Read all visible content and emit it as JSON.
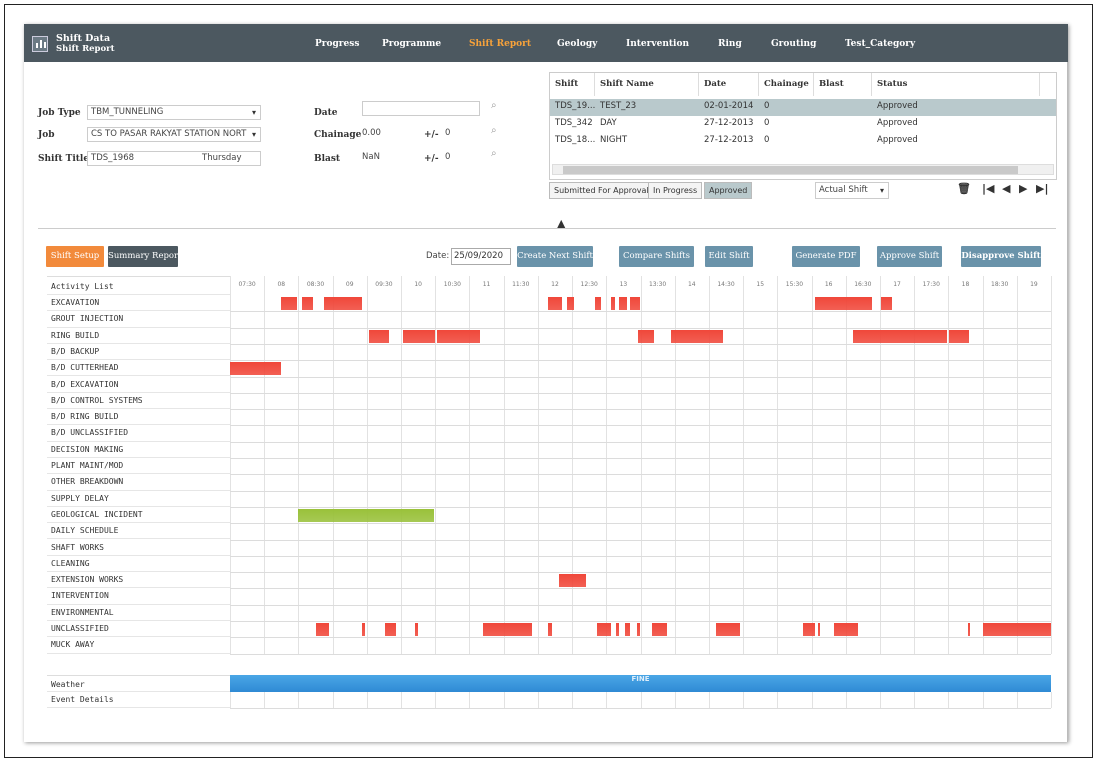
{
  "app": {
    "title": "Shift Data",
    "subtitle": "Shift Report"
  },
  "nav": [
    "Progress",
    "Programme",
    "Shift Report",
    "Geology",
    "Intervention",
    "Ring",
    "Grouting",
    "Test_Category"
  ],
  "nav_active": "Shift Report",
  "form": {
    "job_type_label": "Job Type",
    "job_type_value": "TBM_TUNNELING",
    "job_label": "Job",
    "job_value": "CS TO PASAR RAKYAT STATION NORT",
    "shift_title_label": "Shift Title",
    "shift_title_value": "TDS_1968",
    "day_value": "Thursday",
    "date_label": "Date",
    "date_value": "",
    "chainage_label": "Chainage",
    "chainage_value": "0.00",
    "chainage_pm_label": "+/-",
    "chainage_pm_value": "0",
    "blast_label": "Blast",
    "blast_value": "NaN",
    "blast_pm_label": "+/-",
    "blast_pm_value": "0"
  },
  "shift_table": {
    "headers": [
      "Shift",
      "Shift Name",
      "Date",
      "Chainage",
      "Blast",
      "Status"
    ],
    "rows": [
      {
        "shift": "TDS_19...",
        "name": "TEST_23",
        "date": "02-01-2014",
        "chainage": "0",
        "blast": "",
        "status": "Approved"
      },
      {
        "shift": "TDS_342",
        "name": "DAY",
        "date": "27-12-2013",
        "chainage": "0",
        "blast": "",
        "status": "Approved"
      },
      {
        "shift": "TDS_18...",
        "name": "NIGHT",
        "date": "27-12-2013",
        "chainage": "0",
        "blast": "",
        "status": "Approved"
      }
    ],
    "selected_row": 0
  },
  "filters": {
    "submitted": "Submitted For Approval",
    "in_progress": "In Progress",
    "approved": "Approved",
    "active": "Approved"
  },
  "shift_type": "Actual Shift",
  "actions": {
    "shift_setup": "Shift Setup",
    "summary_report": "Summary Report",
    "date_label": "Date:",
    "date_value": "25/09/2020",
    "create_next": "Create Next Shift",
    "compare": "Compare Shifts",
    "edit": "Edit Shift",
    "generate_pdf": "Generate PDF",
    "approve": "Approve Shift",
    "disapprove": "Disapprove Shift"
  },
  "timeline": {
    "header_label": "Activity List",
    "ticks": [
      "07:30",
      "08",
      "08:30",
      "09",
      "09:30",
      "10",
      "10:30",
      "11",
      "11:30",
      "12",
      "12:30",
      "13",
      "13:30",
      "14",
      "14:30",
      "15",
      "15:30",
      "16",
      "16:30",
      "17",
      "17:30",
      "18",
      "18:30",
      "19"
    ],
    "start": 7.25,
    "end": 19.25,
    "activities": [
      {
        "name": "EXCAVATION",
        "color": "#f0473a",
        "bars": [
          [
            7.995,
            8.23
          ],
          [
            8.3,
            8.47
          ],
          [
            8.62,
            9.18
          ],
          [
            11.9,
            12.1
          ],
          [
            12.18,
            12.28
          ],
          [
            12.58,
            12.68
          ],
          [
            12.82,
            12.88
          ],
          [
            12.93,
            13.05
          ],
          [
            13.1,
            13.25
          ],
          [
            15.8,
            16.63
          ],
          [
            16.76,
            16.93
          ]
        ]
      },
      {
        "name": "GROUT INJECTION",
        "color": "#f0473a",
        "bars": []
      },
      {
        "name": "RING BUILD",
        "color": "#f0473a",
        "bars": [
          [
            9.28,
            9.58
          ],
          [
            9.78,
            10.24
          ],
          [
            10.28,
            10.9
          ],
          [
            13.22,
            13.45
          ],
          [
            13.69,
            14.45
          ],
          [
            16.35,
            17.73
          ],
          [
            17.76,
            18.05
          ]
        ]
      },
      {
        "name": "B/D BACKUP",
        "color": "#f0473a",
        "bars": []
      },
      {
        "name": "B/D CUTTERHEAD",
        "color": "#f0473a",
        "bars": [
          [
            7.25,
            8.0
          ]
        ]
      },
      {
        "name": "B/D EXCAVATION",
        "color": "#f0473a",
        "bars": []
      },
      {
        "name": "B/D CONTROL SYSTEMS",
        "color": "#f0473a",
        "bars": []
      },
      {
        "name": "B/D RING BUILD",
        "color": "#f0473a",
        "bars": []
      },
      {
        "name": "B/D UNCLASSIFIED",
        "color": "#f0473a",
        "bars": []
      },
      {
        "name": "DECISION MAKING",
        "color": "#f0473a",
        "bars": []
      },
      {
        "name": "PLANT MAINT/MOD",
        "color": "#f0473a",
        "bars": []
      },
      {
        "name": "OTHER BREAKDOWN",
        "color": "#f0473a",
        "bars": []
      },
      {
        "name": "SUPPLY DELAY",
        "color": "#f0473a",
        "bars": []
      },
      {
        "name": "GEOLOGICAL INCIDENT",
        "color": "#99c13a",
        "bars": [
          [
            8.25,
            10.23
          ]
        ]
      },
      {
        "name": "DAILY SCHEDULE",
        "color": "#f0473a",
        "bars": []
      },
      {
        "name": "SHAFT WORKS",
        "color": "#f0473a",
        "bars": []
      },
      {
        "name": "CLEANING",
        "color": "#f0473a",
        "bars": []
      },
      {
        "name": "EXTENSION WORKS",
        "color": "#f0473a",
        "bars": [
          [
            12.06,
            12.46
          ]
        ]
      },
      {
        "name": "INTERVENTION",
        "color": "#f0473a",
        "bars": []
      },
      {
        "name": "ENVIRONMENTAL",
        "color": "#f0473a",
        "bars": []
      },
      {
        "name": "UNCLASSIFIED",
        "color": "#f0473a",
        "bars": [
          [
            8.51,
            8.69
          ],
          [
            9.18,
            9.23
          ],
          [
            9.51,
            9.68
          ],
          [
            9.96,
            10.0
          ],
          [
            10.95,
            11.67
          ],
          [
            11.9,
            11.96
          ],
          [
            12.61,
            12.82
          ],
          [
            12.89,
            12.93
          ],
          [
            13.02,
            13.1
          ],
          [
            13.2,
            13.25
          ],
          [
            13.42,
            13.64
          ],
          [
            14.35,
            14.71
          ],
          [
            15.62,
            15.8
          ],
          [
            15.84,
            15.88
          ],
          [
            16.08,
            16.43
          ],
          [
            18.03,
            18.07
          ],
          [
            18.25,
            19.25
          ]
        ]
      },
      {
        "name": "MUCK AWAY",
        "color": "#f0473a",
        "bars": []
      }
    ],
    "weather_label": "Weather",
    "weather_value": "FINE",
    "event_label": "Event Details"
  }
}
